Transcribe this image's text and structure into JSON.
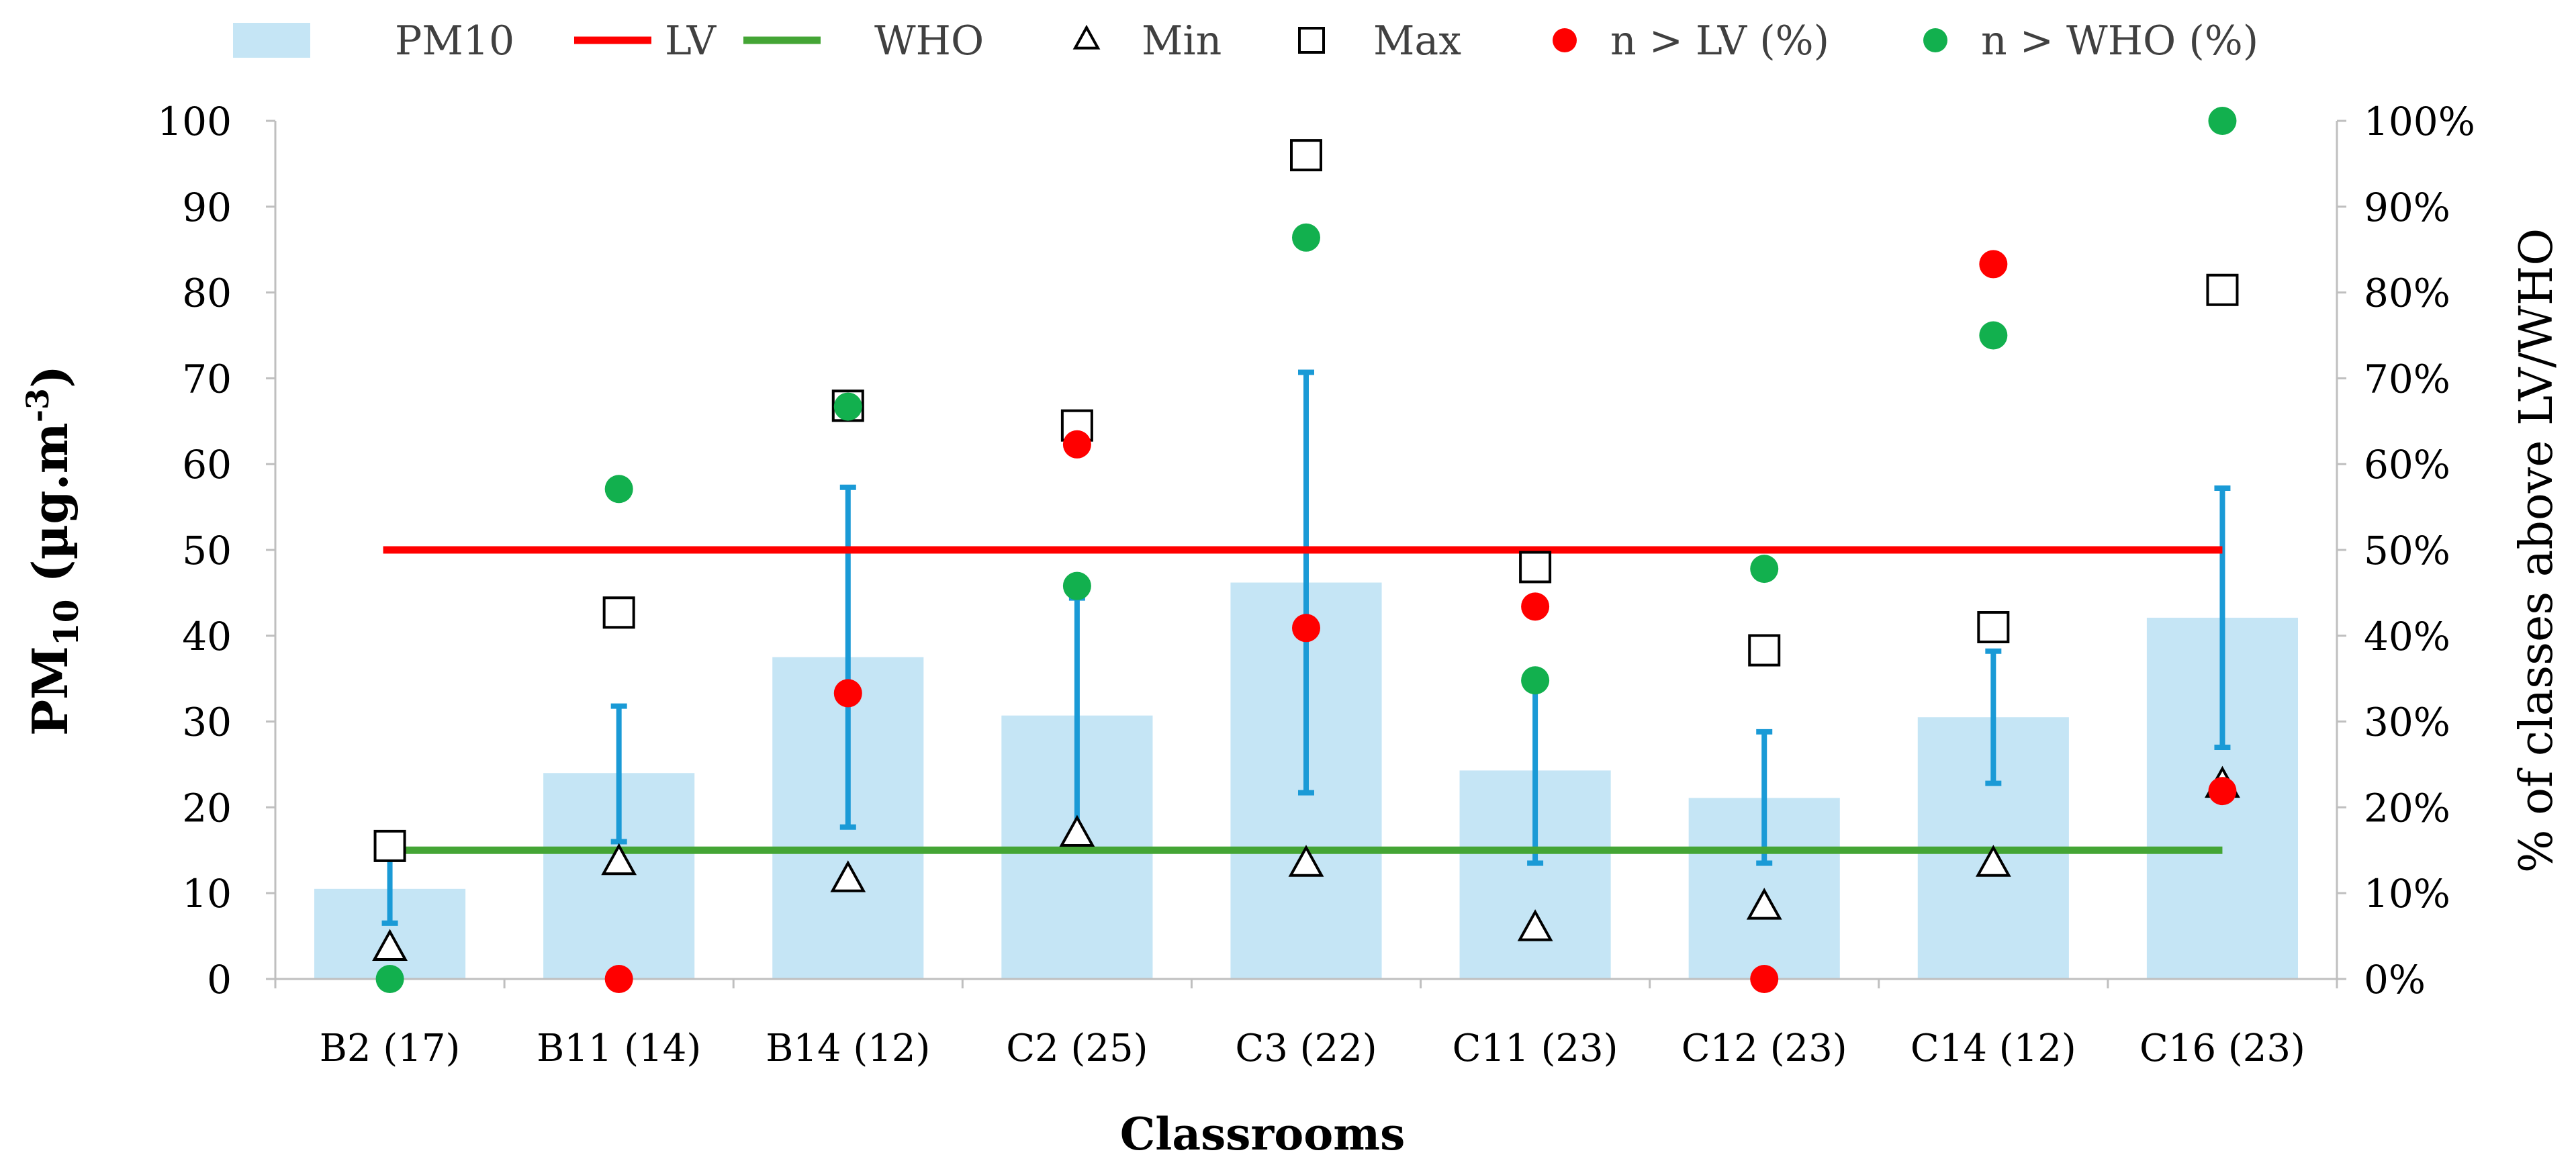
{
  "chart_data": {
    "type": "bar",
    "categories": [
      "B2 (17)",
      "B11 (14)",
      "B14 (12)",
      "C2 (25)",
      "C3 (22)",
      "C11 (23)",
      "C12 (23)",
      "C14 (12)",
      "C16 (23)"
    ],
    "xlabel": "Classrooms",
    "ylabel_main": "PM",
    "ylabel_sub": "10",
    "ylabel_unit_open": " (µg.m",
    "ylabel_unit_sup": "-3",
    "ylabel_unit_close": ")",
    "ylabel_right": "% of classes above LV/WHO",
    "ylim": [
      0,
      100
    ],
    "y_ticks": [
      0,
      10,
      20,
      30,
      40,
      50,
      60,
      70,
      80,
      90,
      100
    ],
    "y2lim": [
      0,
      100
    ],
    "y2_ticks": [
      "0%",
      "10%",
      "20%",
      "30%",
      "40%",
      "50%",
      "60%",
      "70%",
      "80%",
      "90%",
      "100%"
    ],
    "grid": false,
    "legend_position": "top",
    "legend": [
      {
        "key": "pm10",
        "label": "PM10"
      },
      {
        "key": "lv",
        "label": "LV"
      },
      {
        "key": "who",
        "label": "WHO"
      },
      {
        "key": "min",
        "label": "Min"
      },
      {
        "key": "max",
        "label": "Max"
      },
      {
        "key": "n_lv",
        "label": "n > LV (%)"
      },
      {
        "key": "n_who",
        "label": "n > WHO (%)"
      }
    ],
    "series": [
      {
        "name": "PM10",
        "type": "bar",
        "values": [
          10.5,
          24.0,
          37.5,
          30.7,
          46.2,
          24.3,
          21.1,
          30.5,
          42.1
        ]
      },
      {
        "name": "PM10 error low",
        "type": "errorbar_low",
        "values": [
          6.5,
          16.0,
          17.7,
          17.0,
          21.7,
          13.5,
          13.5,
          22.8,
          27.0
        ]
      },
      {
        "name": "PM10 error high",
        "type": "errorbar_high",
        "values": [
          14.5,
          31.8,
          57.3,
          44.4,
          70.7,
          35.1,
          28.8,
          38.2,
          57.2
        ]
      },
      {
        "name": "LV",
        "type": "line",
        "value": 50
      },
      {
        "name": "WHO",
        "type": "line",
        "value": 15
      },
      {
        "name": "Min",
        "type": "scatter",
        "marker": "triangle",
        "values": [
          3.5,
          13.5,
          11.5,
          16.8,
          13.3,
          5.8,
          8.3,
          13.3,
          22.5
        ]
      },
      {
        "name": "Max",
        "type": "scatter",
        "marker": "square",
        "values": [
          15.5,
          42.7,
          66.8,
          64.5,
          96.0,
          48.0,
          38.3,
          41.0,
          80.3
        ]
      },
      {
        "name": "n > LV (%)",
        "type": "scatter",
        "marker": "circle",
        "axis": "right",
        "values": [
          null,
          0,
          33.3,
          62.3,
          40.9,
          43.4,
          0,
          83.3,
          21.9
        ]
      },
      {
        "name": "n > WHO (%)",
        "type": "scatter",
        "marker": "circle",
        "axis": "right",
        "values": [
          0,
          57.1,
          66.7,
          45.8,
          86.4,
          34.8,
          47.8,
          75.0,
          100
        ]
      }
    ],
    "colors": {
      "bar": "#c5e5f5",
      "errorbar": "#1a9ad6",
      "lv": "#ff0000",
      "who": "#44a535",
      "n_lv": "#ff0000",
      "n_who": "#12b04e",
      "axis": "#bfbfbf",
      "text": "#000000"
    }
  }
}
